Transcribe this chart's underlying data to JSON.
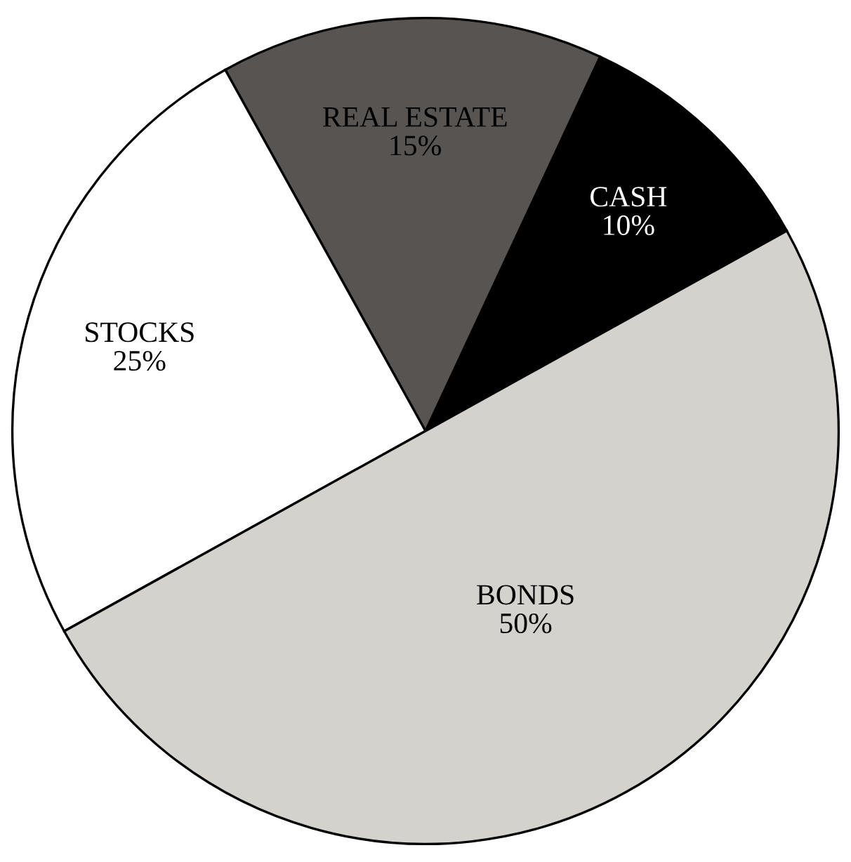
{
  "chart_data": {
    "type": "pie",
    "categories": [
      "CASH",
      "REAL ESTATE",
      "STOCKS",
      "BONDS"
    ],
    "values": [
      10,
      15,
      25,
      50
    ],
    "value_labels": [
      "10%",
      "15%",
      "25%",
      "50%"
    ],
    "colors": [
      "#000000",
      "#575452",
      "#ffffff",
      "#d4d2cc"
    ]
  }
}
